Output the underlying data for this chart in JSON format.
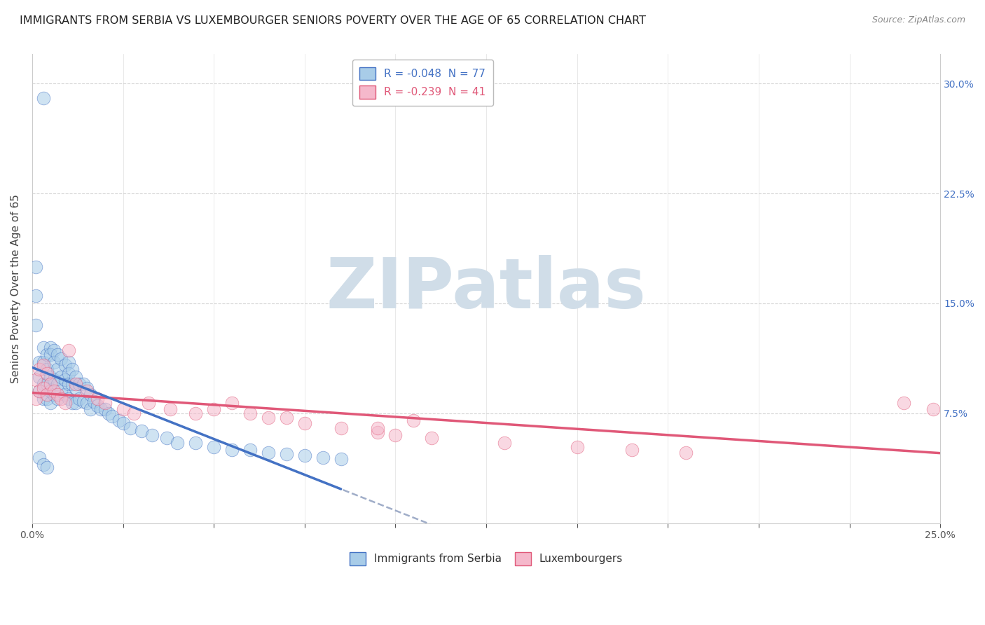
{
  "title": "IMMIGRANTS FROM SERBIA VS LUXEMBOURGER SENIORS POVERTY OVER THE AGE OF 65 CORRELATION CHART",
  "source": "Source: ZipAtlas.com",
  "ylabel": "Seniors Poverty Over the Age of 65",
  "xlim": [
    0.0,
    0.25
  ],
  "ylim": [
    0.0,
    0.32
  ],
  "xtick_positions": [
    0.0,
    0.025,
    0.05,
    0.075,
    0.1,
    0.125,
    0.15,
    0.175,
    0.2,
    0.225,
    0.25
  ],
  "ytick_positions": [
    0.075,
    0.15,
    0.225,
    0.3
  ],
  "yticklabels_right": [
    "7.5%",
    "15.0%",
    "22.5%",
    "30.0%"
  ],
  "legend1_label": "R = -0.048  N = 77",
  "legend2_label": "R = -0.239  N = 41",
  "color_blue": "#a8cce8",
  "color_pink": "#f5b8cb",
  "regression_blue": "#4472c4",
  "regression_pink": "#e05878",
  "regression_gray_dash": "#8899bb",
  "background_color": "#ffffff",
  "grid_color": "#cccccc",
  "title_fontsize": 11.5,
  "source_fontsize": 9,
  "axis_label_fontsize": 11,
  "tick_fontsize": 10,
  "legend_fontsize": 11,
  "watermark_text": "ZIPatlas",
  "watermark_color": "#d0dde8",
  "serbia_x": [
    0.003,
    0.001,
    0.001,
    0.001,
    0.002,
    0.002,
    0.002,
    0.003,
    0.003,
    0.003,
    0.003,
    0.004,
    0.004,
    0.004,
    0.004,
    0.005,
    0.005,
    0.005,
    0.005,
    0.005,
    0.006,
    0.006,
    0.006,
    0.006,
    0.007,
    0.007,
    0.007,
    0.007,
    0.008,
    0.008,
    0.008,
    0.009,
    0.009,
    0.009,
    0.01,
    0.01,
    0.01,
    0.01,
    0.011,
    0.011,
    0.011,
    0.012,
    0.012,
    0.012,
    0.013,
    0.013,
    0.014,
    0.014,
    0.015,
    0.015,
    0.016,
    0.016,
    0.017,
    0.018,
    0.019,
    0.02,
    0.021,
    0.022,
    0.024,
    0.025,
    0.027,
    0.03,
    0.033,
    0.037,
    0.04,
    0.045,
    0.05,
    0.055,
    0.06,
    0.065,
    0.07,
    0.075,
    0.08,
    0.085,
    0.002,
    0.003,
    0.004
  ],
  "serbia_y": [
    0.29,
    0.175,
    0.155,
    0.135,
    0.11,
    0.1,
    0.09,
    0.12,
    0.11,
    0.095,
    0.085,
    0.115,
    0.105,
    0.095,
    0.085,
    0.12,
    0.115,
    0.1,
    0.09,
    0.082,
    0.118,
    0.11,
    0.098,
    0.088,
    0.115,
    0.105,
    0.095,
    0.085,
    0.112,
    0.1,
    0.09,
    0.108,
    0.098,
    0.088,
    0.11,
    0.102,
    0.095,
    0.085,
    0.105,
    0.095,
    0.082,
    0.1,
    0.092,
    0.082,
    0.095,
    0.085,
    0.095,
    0.083,
    0.092,
    0.082,
    0.088,
    0.078,
    0.083,
    0.08,
    0.078,
    0.078,
    0.075,
    0.073,
    0.07,
    0.068,
    0.065,
    0.063,
    0.06,
    0.058,
    0.055,
    0.055,
    0.052,
    0.05,
    0.05,
    0.048,
    0.047,
    0.046,
    0.045,
    0.044,
    0.045,
    0.04,
    0.038
  ],
  "luxem_x": [
    0.001,
    0.001,
    0.002,
    0.002,
    0.003,
    0.003,
    0.004,
    0.004,
    0.005,
    0.006,
    0.007,
    0.008,
    0.009,
    0.01,
    0.012,
    0.015,
    0.018,
    0.02,
    0.025,
    0.028,
    0.032,
    0.038,
    0.045,
    0.055,
    0.065,
    0.075,
    0.085,
    0.095,
    0.11,
    0.13,
    0.15,
    0.165,
    0.18,
    0.05,
    0.06,
    0.07,
    0.095,
    0.1,
    0.105,
    0.24,
    0.248
  ],
  "luxem_y": [
    0.098,
    0.085,
    0.105,
    0.09,
    0.108,
    0.092,
    0.102,
    0.088,
    0.095,
    0.09,
    0.088,
    0.085,
    0.082,
    0.118,
    0.095,
    0.09,
    0.085,
    0.082,
    0.078,
    0.075,
    0.082,
    0.078,
    0.075,
    0.082,
    0.072,
    0.068,
    0.065,
    0.062,
    0.058,
    0.055,
    0.052,
    0.05,
    0.048,
    0.078,
    0.075,
    0.072,
    0.065,
    0.06,
    0.07,
    0.082,
    0.078
  ]
}
